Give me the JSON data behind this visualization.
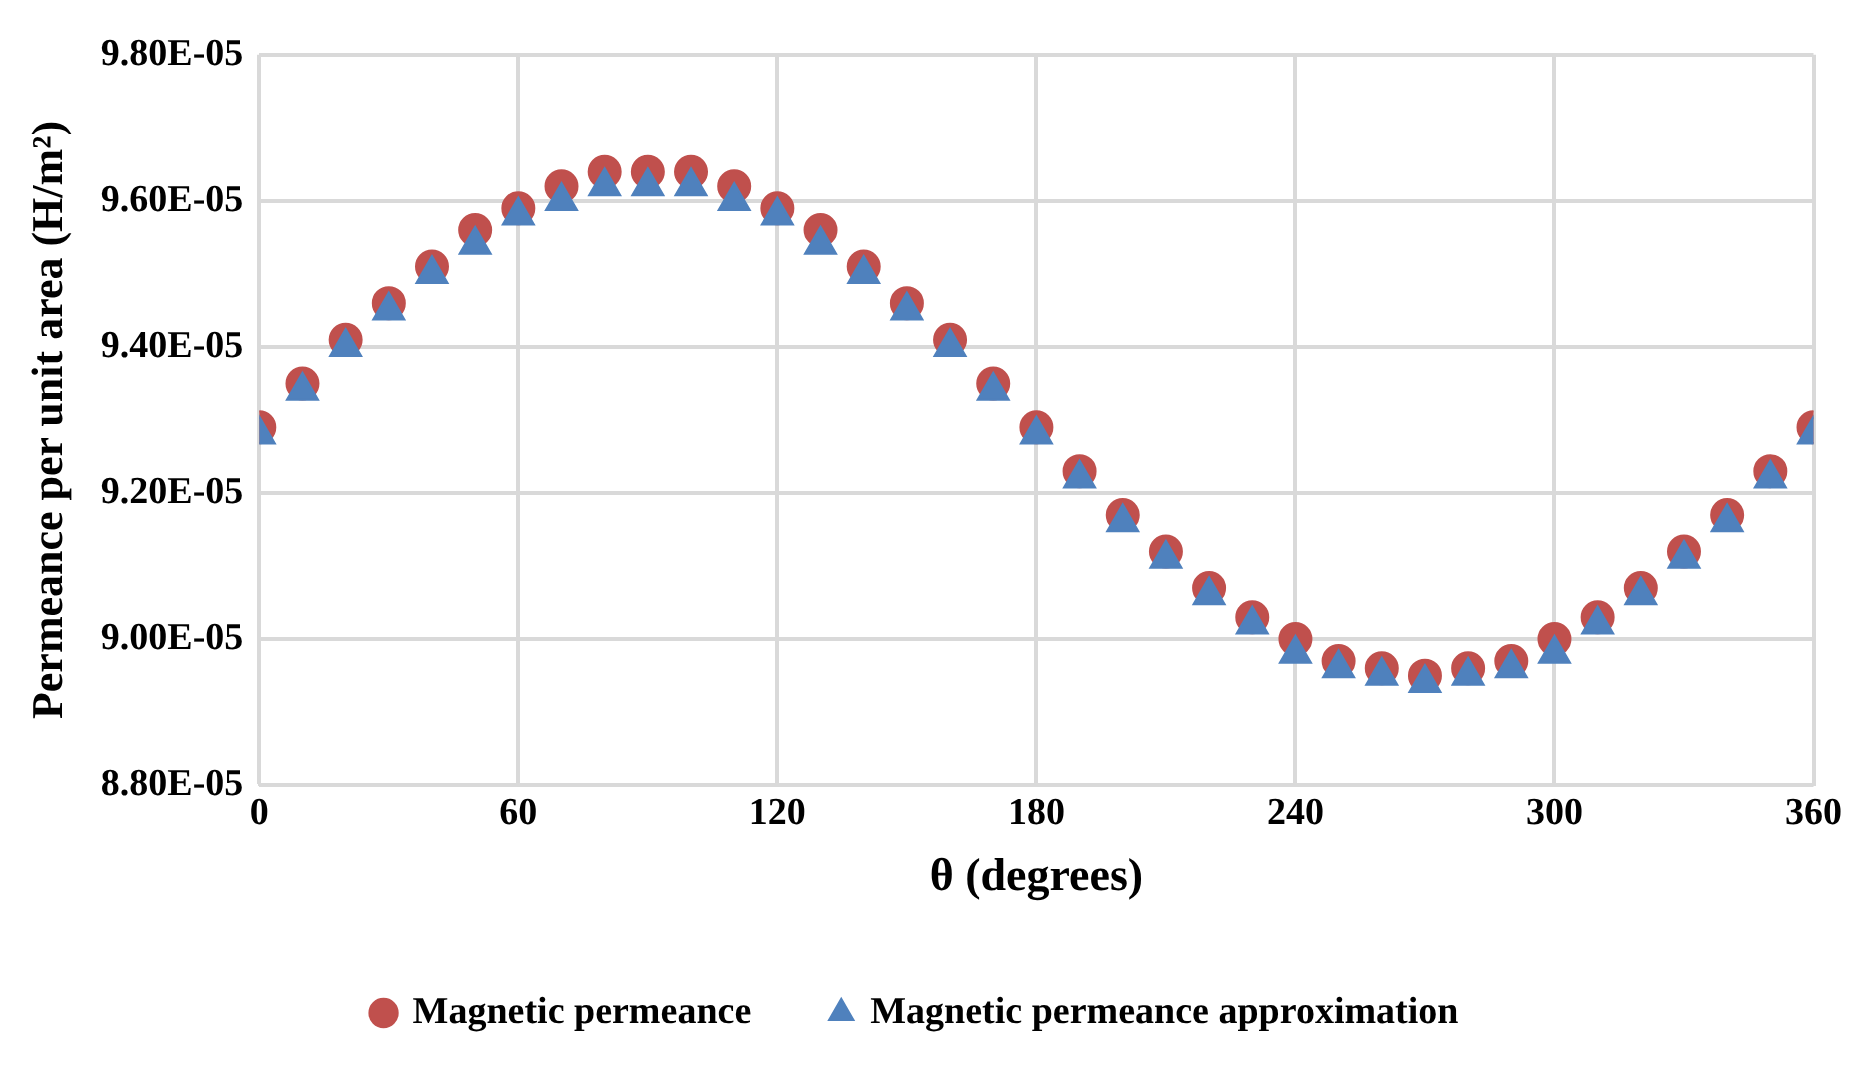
{
  "chart_data": {
    "type": "scatter",
    "xlabel": "θ (degrees)",
    "ylabel": "Permeance per unit area (H/m²)",
    "x": [
      0,
      10,
      20,
      30,
      40,
      50,
      60,
      70,
      80,
      90,
      100,
      110,
      120,
      130,
      140,
      150,
      160,
      170,
      180,
      190,
      200,
      210,
      220,
      230,
      240,
      250,
      260,
      270,
      280,
      290,
      300,
      310,
      320,
      330,
      340,
      350,
      360
    ],
    "series": [
      {
        "name": "Magnetic permeance",
        "color": "#c0504d",
        "marker": "circle",
        "values": [
          9.29e-05,
          9.35e-05,
          9.41e-05,
          9.46e-05,
          9.51e-05,
          9.56e-05,
          9.59e-05,
          9.62e-05,
          9.64e-05,
          9.64e-05,
          9.64e-05,
          9.62e-05,
          9.59e-05,
          9.56e-05,
          9.51e-05,
          9.46e-05,
          9.41e-05,
          9.35e-05,
          9.29e-05,
          9.23e-05,
          9.17e-05,
          9.12e-05,
          9.07e-05,
          9.03e-05,
          9e-05,
          8.97e-05,
          8.96e-05,
          8.95e-05,
          8.96e-05,
          8.97e-05,
          9e-05,
          9.03e-05,
          9.07e-05,
          9.12e-05,
          9.17e-05,
          9.23e-05,
          9.29e-05
        ]
      },
      {
        "name": "Magnetic permeance approximation",
        "color": "#4f81bd",
        "marker": "triangle",
        "values": [
          9.28e-05,
          9.34e-05,
          9.4e-05,
          9.45e-05,
          9.5e-05,
          9.54e-05,
          9.58e-05,
          9.6e-05,
          9.62e-05,
          9.62e-05,
          9.62e-05,
          9.6e-05,
          9.58e-05,
          9.54e-05,
          9.5e-05,
          9.45e-05,
          9.4e-05,
          9.34e-05,
          9.28e-05,
          9.22e-05,
          9.16e-05,
          9.11e-05,
          9.06e-05,
          9.02e-05,
          8.98e-05,
          8.96e-05,
          8.95e-05,
          8.94e-05,
          8.95e-05,
          8.96e-05,
          8.98e-05,
          9.02e-05,
          9.06e-05,
          9.11e-05,
          9.16e-05,
          9.22e-05,
          9.28e-05
        ]
      }
    ],
    "xlim": [
      0,
      360
    ],
    "xticks": [
      0,
      60,
      120,
      180,
      240,
      300,
      360
    ],
    "ylim": [
      8.8e-05,
      9.8e-05
    ],
    "yticks": [
      {
        "value": 8.8e-05,
        "label": "8.80E-05"
      },
      {
        "value": 9e-05,
        "label": "9.00E-05"
      },
      {
        "value": 9.2e-05,
        "label": "9.20E-05"
      },
      {
        "value": 9.4e-05,
        "label": "9.40E-05"
      },
      {
        "value": 9.6e-05,
        "label": "9.60E-05"
      },
      {
        "value": 9.8e-05,
        "label": "9.80E-05"
      }
    ],
    "grid": true,
    "legend": "bottom"
  }
}
